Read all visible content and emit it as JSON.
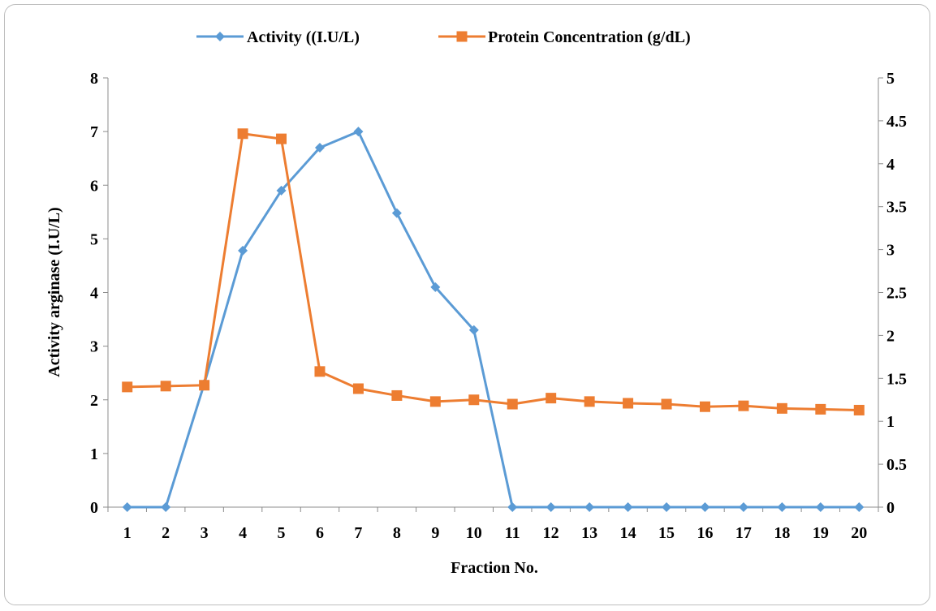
{
  "chart_data": {
    "type": "line",
    "title": "",
    "xlabel": "Fraction No.",
    "ylabel": "Activity arginase  (I.U/L)",
    "y2label": "",
    "categories": [
      "1",
      "2",
      "3",
      "4",
      "5",
      "6",
      "7",
      "8",
      "9",
      "10",
      "11",
      "12",
      "13",
      "14",
      "15",
      "16",
      "17",
      "18",
      "19",
      "20"
    ],
    "ylim": [
      0,
      8
    ],
    "yticks": [
      "0",
      "1",
      "2",
      "3",
      "4",
      "5",
      "6",
      "7",
      "8"
    ],
    "y2lim": [
      0,
      5
    ],
    "y2ticks": [
      "0",
      "0.5",
      "1",
      "1.5",
      "2",
      "2.5",
      "3",
      "3.5",
      "4",
      "4.5",
      "5"
    ],
    "grid": false,
    "legend_position": "top",
    "series": [
      {
        "name": "Activity ((I.U/L)",
        "axis": "left",
        "color": "#5b9bd5",
        "marker": "diamond",
        "values": [
          0,
          0,
          2.3,
          4.78,
          5.9,
          6.7,
          7.0,
          5.48,
          4.1,
          3.3,
          0,
          0,
          0,
          0,
          0,
          0,
          0,
          0,
          0,
          0
        ]
      },
      {
        "name": "Protein Concentration (g/dL)",
        "axis": "right",
        "color": "#ed7d31",
        "marker": "square",
        "values": [
          1.4,
          1.41,
          1.42,
          4.35,
          4.29,
          1.58,
          1.38,
          1.3,
          1.23,
          1.25,
          1.2,
          1.27,
          1.23,
          1.21,
          1.2,
          1.17,
          1.18,
          1.15,
          1.14,
          1.13
        ]
      }
    ]
  }
}
